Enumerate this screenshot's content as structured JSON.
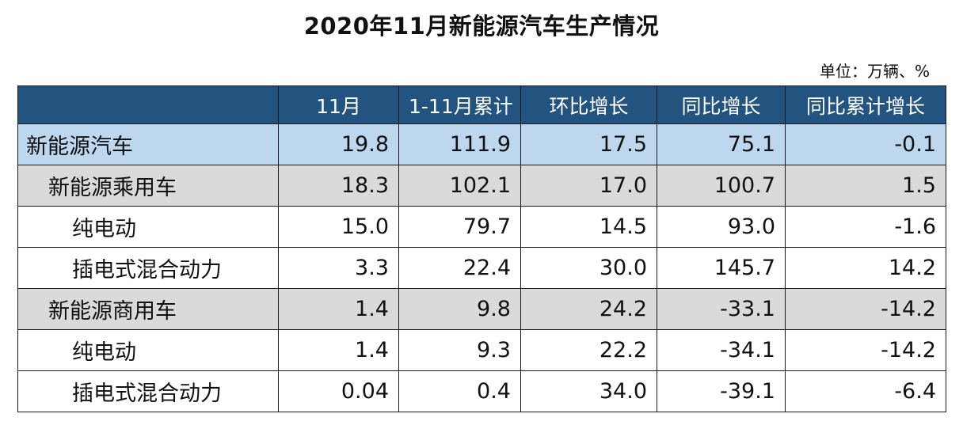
{
  "title": "2020年11月新能源汽车生产情况",
  "unit": "单位：万辆、%",
  "table": {
    "headers": [
      "",
      "11月",
      "1-11月累计",
      "环比增长",
      "同比增长",
      "同比累计增长"
    ],
    "rows": [
      {
        "name": "新能源汽车",
        "level": "top",
        "values": [
          "19.8",
          "111.9",
          "17.5",
          "75.1",
          "-0.1"
        ]
      },
      {
        "name": "新能源乘用车",
        "level": "sub",
        "values": [
          "18.3",
          "102.1",
          "17.0",
          "100.7",
          "1.5"
        ]
      },
      {
        "name": "纯电动",
        "level": "leaf",
        "values": [
          "15.0",
          "79.7",
          "14.5",
          "93.0",
          "-1.6"
        ]
      },
      {
        "name": "插电式混合动力",
        "level": "leaf",
        "values": [
          "3.3",
          "22.4",
          "30.0",
          "145.7",
          "14.2"
        ]
      },
      {
        "name": "新能源商用车",
        "level": "sub",
        "values": [
          "1.4",
          "9.8",
          "24.2",
          "-33.1",
          "-14.2"
        ]
      },
      {
        "name": "纯电动",
        "level": "leaf",
        "values": [
          "1.4",
          "9.3",
          "22.2",
          "-34.1",
          "-14.2"
        ]
      },
      {
        "name": "插电式混合动力",
        "level": "leaf",
        "values": [
          "0.04",
          "0.4",
          "34.0",
          "-39.1",
          "-6.4"
        ]
      }
    ]
  },
  "colors": {
    "header_bg": "#23537f",
    "top_row_bg": "#bdd7ee",
    "sub_row_bg": "#dadada"
  }
}
